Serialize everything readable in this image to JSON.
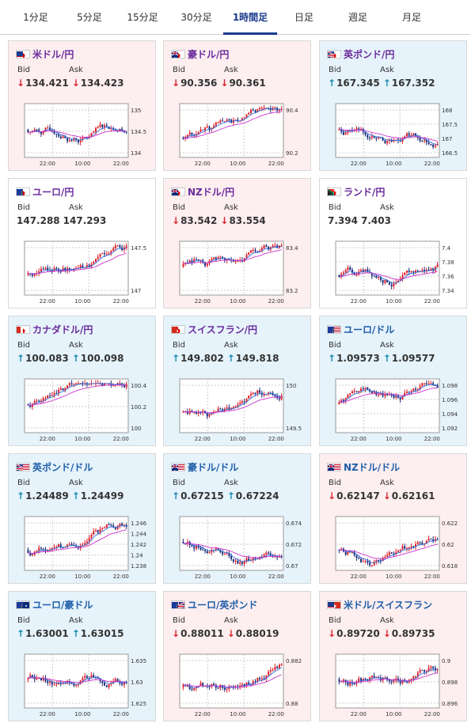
{
  "tabs": [
    {
      "label": "1分足"
    },
    {
      "label": "5分足"
    },
    {
      "label": "15分足"
    },
    {
      "label": "30分足"
    },
    {
      "label": "1時間足"
    },
    {
      "label": "日足"
    },
    {
      "label": "週足"
    },
    {
      "label": "月足"
    }
  ],
  "active_tab": "1時間足",
  "labels": {
    "bid": "Bid",
    "ask": "Ask"
  },
  "cards": [
    {
      "name": "米ドル/円",
      "bid": "134.421",
      "ask": "134.423",
      "dir": "down",
      "theme": "pink",
      "name_color": "purple",
      "flags": [
        "us-flag",
        "jp-flag"
      ],
      "x_ticks": [
        "22:00",
        "10:00",
        "22:00"
      ],
      "y_ticks": [
        "135",
        "134.5",
        "134"
      ]
    },
    {
      "name": "豪ドル/円",
      "bid": "90.356",
      "ask": "90.361",
      "dir": "down",
      "theme": "pink",
      "name_color": "purple",
      "flags": [
        "au-flag",
        "jp-flag"
      ],
      "x_ticks": [
        "22:00",
        "10:00",
        "22:00"
      ],
      "y_ticks": [
        "90.4",
        "90.2"
      ]
    },
    {
      "name": "英ポンド/円",
      "bid": "167.345",
      "ask": "167.352",
      "dir": "up",
      "theme": "blue",
      "name_color": "purple",
      "flags": [
        "gb-flag",
        "jp-flag"
      ],
      "x_ticks": [
        "22:00",
        "10:00",
        "22:00"
      ],
      "y_ticks": [
        "168",
        "167.5",
        "167",
        "166.5"
      ]
    },
    {
      "name": "ユーロ/円",
      "bid": "147.288",
      "ask": "147.293",
      "dir": "none",
      "theme": "white",
      "name_color": "purple",
      "flags": [
        "eu-flag",
        "jp-flag"
      ],
      "x_ticks": [
        "22:00",
        "10:00",
        "22:00"
      ],
      "y_ticks": [
        "147.5",
        "147"
      ]
    },
    {
      "name": "NZドル/円",
      "bid": "83.542",
      "ask": "83.554",
      "dir": "down",
      "theme": "pink",
      "name_color": "purple",
      "flags": [
        "nz-flag",
        "jp-flag"
      ],
      "x_ticks": [
        "22:00",
        "10:00",
        "22:00"
      ],
      "y_ticks": [
        "83.4",
        "83.2"
      ]
    },
    {
      "name": "ランド/円",
      "bid": "7.394",
      "ask": "7.403",
      "dir": "none",
      "theme": "white",
      "name_color": "purple",
      "flags": [
        "za-flag",
        "jp-flag"
      ],
      "x_ticks": [
        "22:00",
        "10:00",
        "22:00"
      ],
      "y_ticks": [
        "7.4",
        "7.38",
        "7.36",
        "7.34"
      ]
    },
    {
      "name": "カナダドル/円",
      "bid": "100.083",
      "ask": "100.098",
      "dir": "up",
      "theme": "blue",
      "name_color": "purple",
      "flags": [
        "ca-flag",
        "jp-flag"
      ],
      "x_ticks": [
        "22:00",
        "10:00",
        "22:00"
      ],
      "y_ticks": [
        "100.4",
        "100.2",
        "100"
      ]
    },
    {
      "name": "スイスフラン/円",
      "bid": "149.802",
      "ask": "149.818",
      "dir": "up",
      "theme": "blue",
      "name_color": "purple",
      "flags": [
        "ch-flag",
        "jp-flag"
      ],
      "x_ticks": [
        "22:00",
        "10:00",
        "22:00"
      ],
      "y_ticks": [
        "150",
        "149.5"
      ]
    },
    {
      "name": "ユーロ/ドル",
      "bid": "1.09573",
      "ask": "1.09577",
      "dir": "up",
      "theme": "blue",
      "name_color": "blue",
      "flags": [
        "eu-flag",
        "us-flag"
      ],
      "x_ticks": [
        "22:00",
        "10:00",
        "22:00"
      ],
      "y_ticks": [
        "1.098",
        "1.096",
        "1.094",
        "1.092"
      ]
    },
    {
      "name": "英ポンド/ドル",
      "bid": "1.24489",
      "ask": "1.24499",
      "dir": "up",
      "theme": "blue",
      "name_color": "blue",
      "flags": [
        "gb-flag",
        "us-flag"
      ],
      "x_ticks": [
        "22:00",
        "10:00",
        "22:00"
      ],
      "y_ticks": [
        "1.246",
        "1.244",
        "1.242",
        "1.24",
        "1.238"
      ]
    },
    {
      "name": "豪ドル/ドル",
      "bid": "0.67215",
      "ask": "0.67224",
      "dir": "up",
      "theme": "blue",
      "name_color": "blue",
      "flags": [
        "au-flag",
        "us-flag"
      ],
      "x_ticks": [
        "22:00",
        "10:00",
        "22:00"
      ],
      "y_ticks": [
        "0.674",
        "0.672",
        "0.67"
      ]
    },
    {
      "name": "NZドル/ドル",
      "bid": "0.62147",
      "ask": "0.62161",
      "dir": "down",
      "theme": "pink",
      "name_color": "blue",
      "flags": [
        "nz-flag",
        "us-flag"
      ],
      "x_ticks": [
        "22:00",
        "10:00",
        "22:00"
      ],
      "y_ticks": [
        "0.622",
        "0.62",
        "0.618"
      ]
    },
    {
      "name": "ユーロ/豪ドル",
      "bid": "1.63001",
      "ask": "1.63015",
      "dir": "up",
      "theme": "blue",
      "name_color": "blue",
      "flags": [
        "eu-flag",
        "au-flag"
      ],
      "x_ticks": [
        "22:00",
        "10:00",
        "22:00"
      ],
      "y_ticks": [
        "1.635",
        "1.63",
        "1.625"
      ]
    },
    {
      "name": "ユーロ/英ポンド",
      "bid": "0.88011",
      "ask": "0.88019",
      "dir": "down",
      "theme": "pink",
      "name_color": "blue",
      "flags": [
        "eu-flag",
        "gb-flag"
      ],
      "x_ticks": [
        "22:00",
        "10:00",
        "22:00"
      ],
      "y_ticks": [
        "0.882",
        "0.88"
      ]
    },
    {
      "name": "米ドル/スイスフラン",
      "bid": "0.89720",
      "ask": "0.89735",
      "dir": "down",
      "theme": "pink",
      "name_color": "blue",
      "flags": [
        "us-flag",
        "ch-flag"
      ],
      "x_ticks": [
        "22:00",
        "10:00",
        "22:00"
      ],
      "y_ticks": [
        "0.9",
        "0.898",
        "0.896"
      ]
    }
  ],
  "colors": {
    "down": "#d9262e",
    "up": "#1a8ab0",
    "candle_up": "#e0202a",
    "candle_down": "#1c2f7a",
    "ma_short": "#2f6fe0",
    "ma_long": "#cc33cc"
  }
}
